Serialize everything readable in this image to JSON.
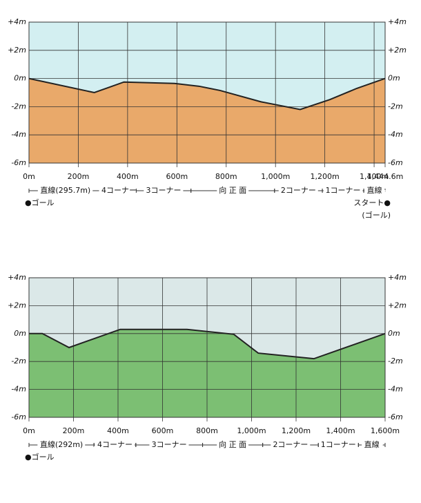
{
  "chart_data": [
    {
      "type": "area",
      "color": "#e9a96a",
      "background": "#d3eff1",
      "line_color": "#222",
      "x": [
        0,
        265,
        385,
        590,
        690,
        775,
        940,
        1100,
        1220,
        1330,
        1444.6
      ],
      "values": [
        0,
        -1,
        -0.25,
        -0.35,
        -0.55,
        -0.85,
        -1.65,
        -2.2,
        -1.5,
        -0.7,
        0
      ],
      "xlim": [
        0,
        1444.6
      ],
      "ylim": [
        -6,
        4
      ],
      "xticks": [
        {
          "value": 0,
          "label": "0m"
        },
        {
          "value": 200,
          "label": "200m"
        },
        {
          "value": 400,
          "label": "400m"
        },
        {
          "value": 600,
          "label": "600m"
        },
        {
          "value": 800,
          "label": "800m"
        },
        {
          "value": 1000,
          "label": "1,000m"
        },
        {
          "value": 1200,
          "label": "1,200m"
        },
        {
          "value": 1400,
          "label": "1,400m"
        },
        {
          "value": 1444.6,
          "label": "1,444.6m"
        }
      ],
      "yticks": [
        {
          "value": -6,
          "label": "-6m"
        },
        {
          "value": -4,
          "label": "-4m"
        },
        {
          "value": -2,
          "label": "-2m"
        },
        {
          "value": 0,
          "label": "0m"
        },
        {
          "value": 2,
          "label": "+2m"
        },
        {
          "value": 4,
          "label": "+4m"
        }
      ],
      "grid": true,
      "sections": [
        {
          "label": "直線(295.7m)",
          "from": 0,
          "to": 295.7
        },
        {
          "label": "4コーナー",
          "from": 295.7,
          "to": 435
        },
        {
          "label": "3コーナー",
          "from": 435,
          "to": 657
        },
        {
          "label": "向 正 面",
          "from": 657,
          "to": 996
        },
        {
          "label": "2コーナー",
          "from": 996,
          "to": 1190
        },
        {
          "label": "1コーナー",
          "from": 1190,
          "to": 1358
        },
        {
          "label": "直線",
          "from": 1358,
          "to": 1444.6
        }
      ],
      "annotations": [
        {
          "text": "●ゴール",
          "anchor": "start"
        },
        {
          "text": "スタート●",
          "anchor": "end"
        },
        {
          "text": "(ゴール)",
          "anchor": "end"
        }
      ]
    },
    {
      "type": "area",
      "color": "#7cbf73",
      "background": "#dbe8e8",
      "line_color": "#222",
      "x": [
        0,
        60,
        180,
        410,
        710,
        920,
        1030,
        1280,
        1600
      ],
      "values": [
        0,
        0,
        -1,
        0.3,
        0.3,
        -0.05,
        -1.4,
        -1.8,
        0
      ],
      "xlim": [
        0,
        1600
      ],
      "ylim": [
        -6,
        4
      ],
      "xticks": [
        {
          "value": 0,
          "label": "0m"
        },
        {
          "value": 200,
          "label": "200m"
        },
        {
          "value": 400,
          "label": "400m"
        },
        {
          "value": 600,
          "label": "600m"
        },
        {
          "value": 800,
          "label": "800m"
        },
        {
          "value": 1000,
          "label": "1,000m"
        },
        {
          "value": 1200,
          "label": "1,200m"
        },
        {
          "value": 1400,
          "label": "1,400m"
        },
        {
          "value": 1600,
          "label": "1,600m"
        }
      ],
      "yticks": [
        {
          "value": -6,
          "label": "-6m"
        },
        {
          "value": -4,
          "label": "-4m"
        },
        {
          "value": -2,
          "label": "-2m"
        },
        {
          "value": 0,
          "label": "0m"
        },
        {
          "value": 2,
          "label": "+2m"
        },
        {
          "value": 4,
          "label": "+4m"
        }
      ],
      "grid": true,
      "sections": [
        {
          "label": "直線(292m)",
          "from": 0,
          "to": 292
        },
        {
          "label": "4コーナー",
          "from": 292,
          "to": 480
        },
        {
          "label": "3コーナー",
          "from": 480,
          "to": 780
        },
        {
          "label": "向 正 面",
          "from": 780,
          "to": 1050
        },
        {
          "label": "2コーナー",
          "from": 1050,
          "to": 1300
        },
        {
          "label": "1コーナー",
          "from": 1300,
          "to": 1480
        },
        {
          "label": "直線",
          "from": 1480,
          "to": 1600
        }
      ],
      "annotations": [
        {
          "text": "●ゴール",
          "anchor": "start"
        }
      ]
    }
  ]
}
